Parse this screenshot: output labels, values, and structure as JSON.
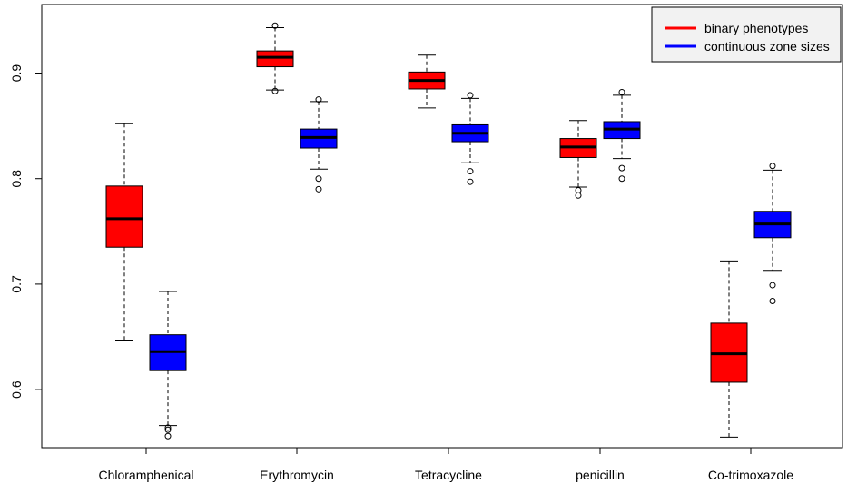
{
  "chart_data": {
    "type": "box",
    "title": "",
    "xlabel": "",
    "ylabel": "",
    "ylim": [
      0.545,
      0.965
    ],
    "yticks": [
      0.6,
      0.7,
      0.8,
      0.9
    ],
    "ytick_labels": [
      "0.6",
      "0.7",
      "0.8",
      "0.9"
    ],
    "categories": [
      "Chloramphenical",
      "Erythromycin",
      "Tetracycline",
      "penicillin",
      "Co-trimoxazole"
    ],
    "legend_position": "top-right",
    "series": [
      {
        "name": "binary phenotypes",
        "color": "#ff0000",
        "boxes": [
          {
            "whisker_low": 0.647,
            "q1": 0.735,
            "median": 0.762,
            "q3": 0.793,
            "whisker_high": 0.852,
            "outliers": []
          },
          {
            "whisker_low": 0.884,
            "q1": 0.906,
            "median": 0.915,
            "q3": 0.921,
            "whisker_high": 0.943,
            "outliers": [
              0.945,
              0.883
            ]
          },
          {
            "whisker_low": 0.867,
            "q1": 0.885,
            "median": 0.893,
            "q3": 0.901,
            "whisker_high": 0.917,
            "outliers": []
          },
          {
            "whisker_low": 0.792,
            "q1": 0.82,
            "median": 0.83,
            "q3": 0.838,
            "whisker_high": 0.855,
            "outliers": [
              0.789,
              0.784
            ]
          },
          {
            "whisker_low": 0.555,
            "q1": 0.607,
            "median": 0.634,
            "q3": 0.663,
            "whisker_high": 0.722,
            "outliers": []
          }
        ]
      },
      {
        "name": "continuous zone sizes",
        "color": "#0000ff",
        "boxes": [
          {
            "whisker_low": 0.566,
            "q1": 0.618,
            "median": 0.636,
            "q3": 0.652,
            "whisker_high": 0.693,
            "outliers": [
              0.564,
              0.562,
              0.556
            ]
          },
          {
            "whisker_low": 0.809,
            "q1": 0.829,
            "median": 0.839,
            "q3": 0.847,
            "whisker_high": 0.873,
            "outliers": [
              0.875,
              0.8,
              0.79
            ]
          },
          {
            "whisker_low": 0.815,
            "q1": 0.835,
            "median": 0.843,
            "q3": 0.851,
            "whisker_high": 0.876,
            "outliers": [
              0.879,
              0.807,
              0.797
            ]
          },
          {
            "whisker_low": 0.819,
            "q1": 0.838,
            "median": 0.847,
            "q3": 0.854,
            "whisker_high": 0.879,
            "outliers": [
              0.882,
              0.81,
              0.8
            ]
          },
          {
            "whisker_low": 0.713,
            "q1": 0.744,
            "median": 0.757,
            "q3": 0.769,
            "whisker_high": 0.808,
            "outliers": [
              0.812,
              0.699,
              0.684
            ]
          }
        ]
      }
    ]
  }
}
